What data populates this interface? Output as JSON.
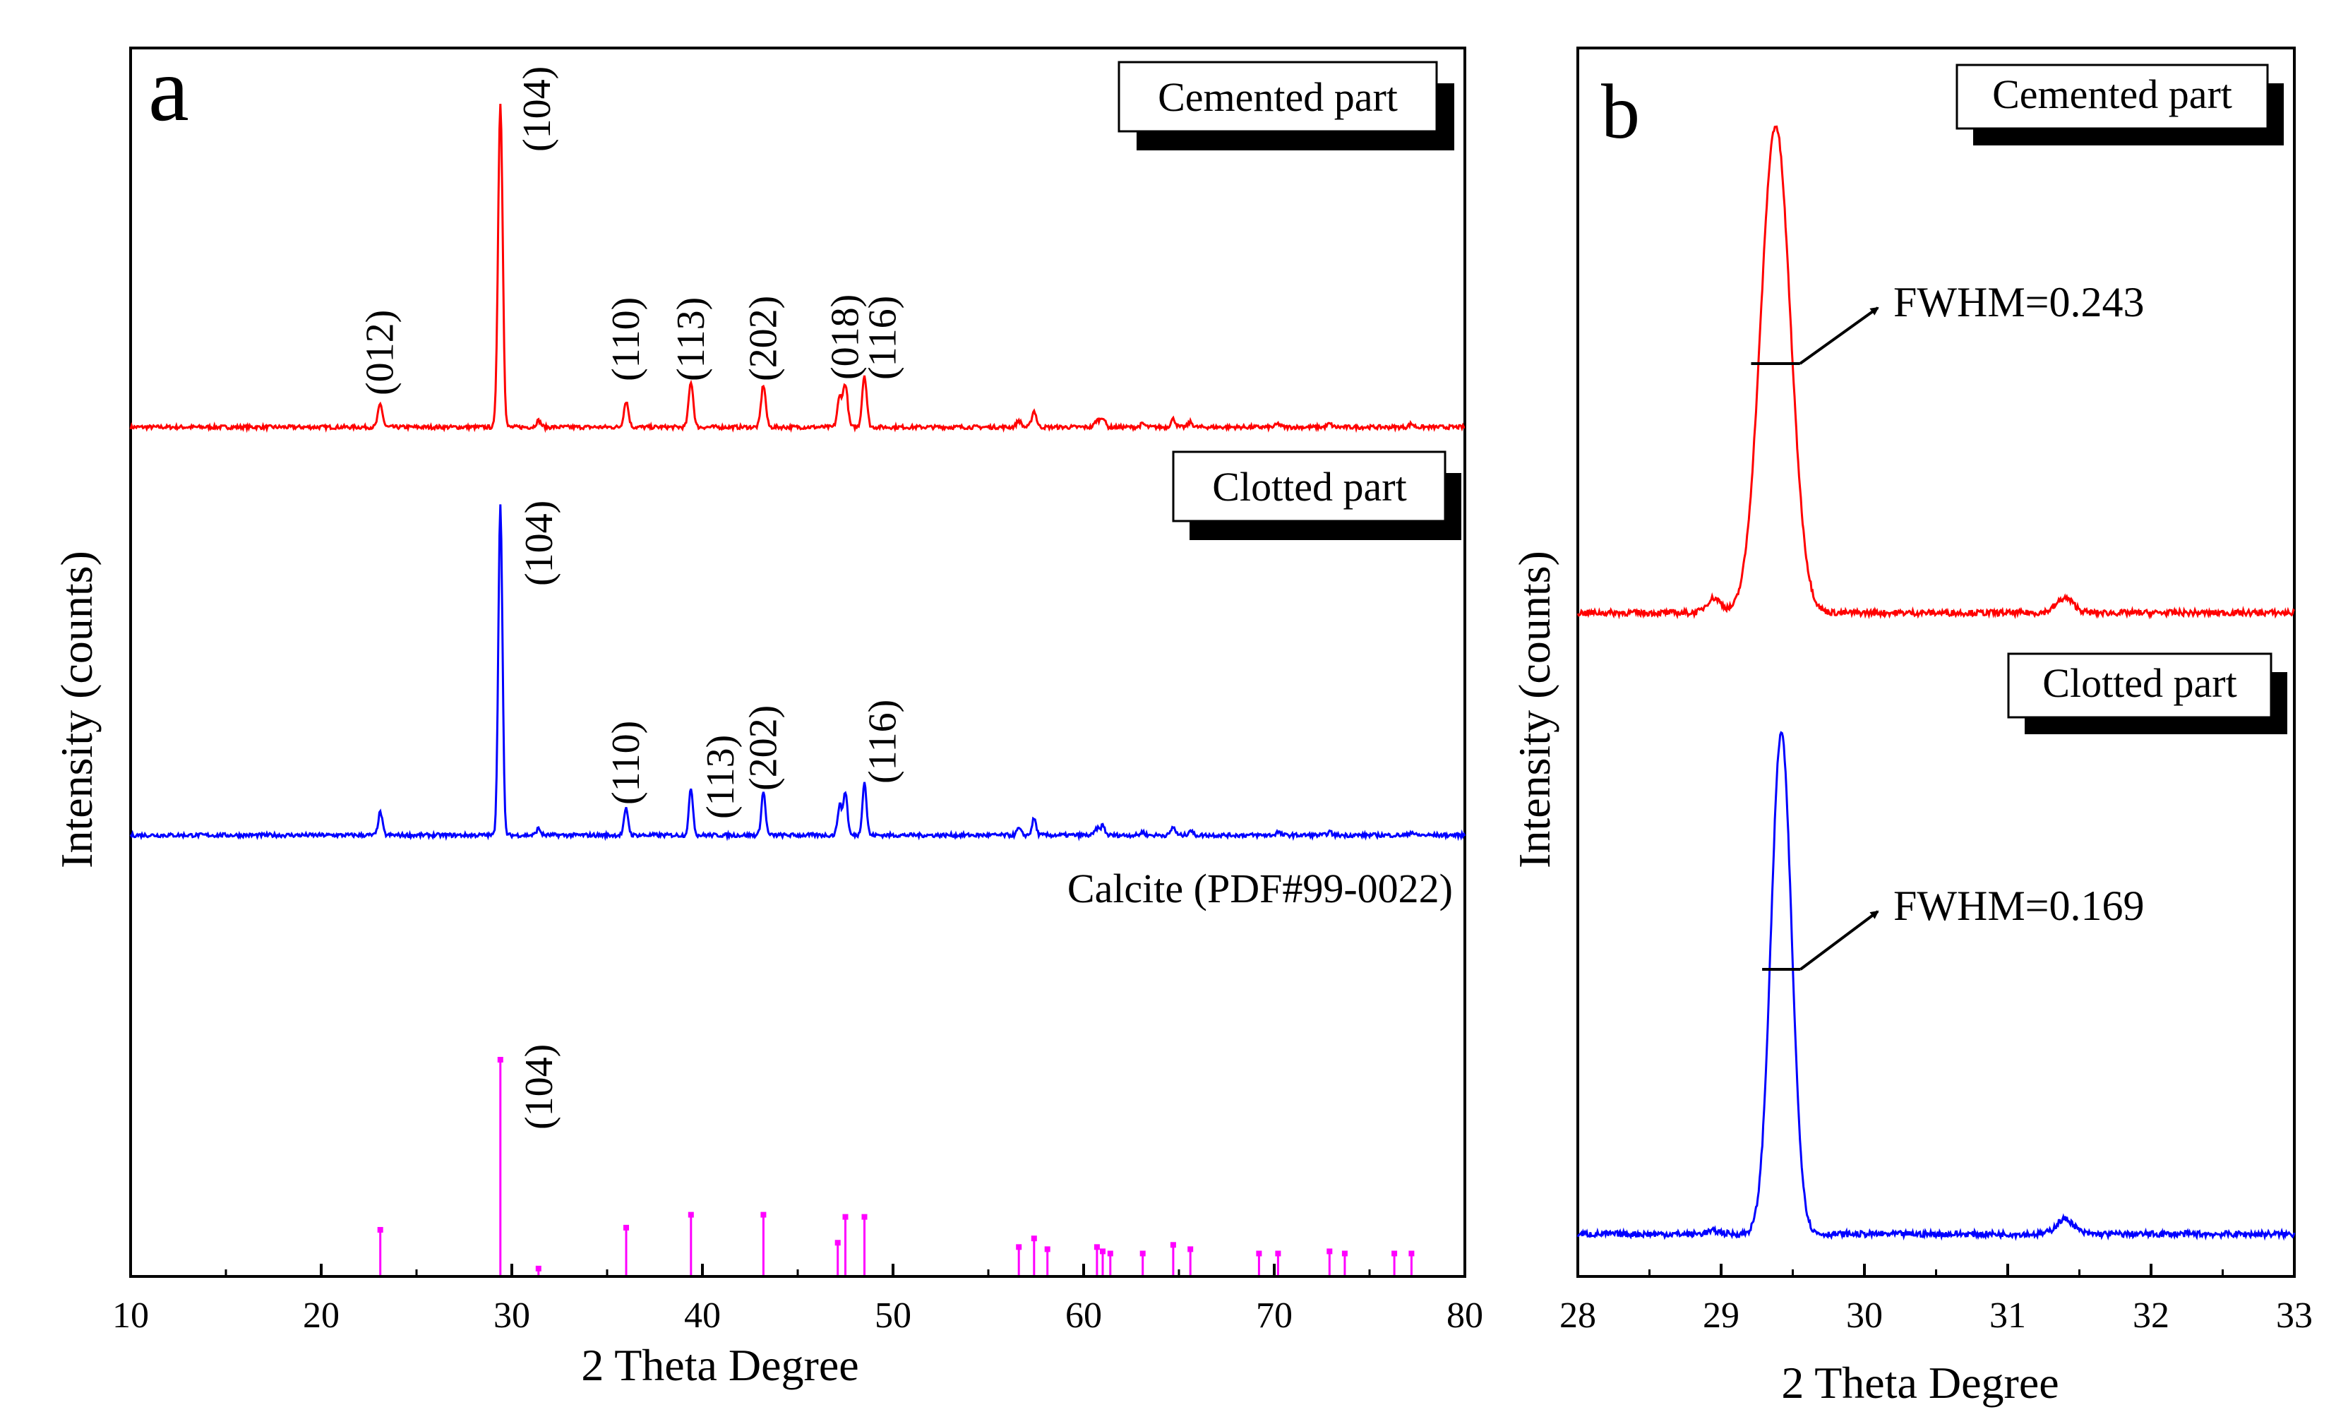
{
  "chart_data": [
    {
      "panel_letter": "a",
      "type": "line",
      "xlabel": "2 Theta Degree",
      "ylabel": "Intensity (counts)",
      "xlim": [
        10,
        80
      ],
      "x_ticks": [
        10,
        20,
        30,
        40,
        50,
        60,
        70,
        80
      ],
      "grid": false,
      "peaks": [
        {
          "x": 23.1,
          "h": 0.07
        },
        {
          "x": 29.4,
          "h": 1.0
        },
        {
          "x": 31.4,
          "h": 0.02
        },
        {
          "x": 36.0,
          "h": 0.08
        },
        {
          "x": 39.4,
          "h": 0.14
        },
        {
          "x": 43.2,
          "h": 0.13
        },
        {
          "x": 47.2,
          "h": 0.09
        },
        {
          "x": 47.5,
          "h": 0.13
        },
        {
          "x": 48.5,
          "h": 0.16
        },
        {
          "x": 56.6,
          "h": 0.02
        },
        {
          "x": 57.4,
          "h": 0.05
        },
        {
          "x": 60.7,
          "h": 0.02
        },
        {
          "x": 61.0,
          "h": 0.03
        },
        {
          "x": 63.1,
          "h": 0.01
        },
        {
          "x": 64.7,
          "h": 0.025
        },
        {
          "x": 65.6,
          "h": 0.015
        },
        {
          "x": 70.2,
          "h": 0.01
        },
        {
          "x": 72.9,
          "h": 0.01
        },
        {
          "x": 77.2,
          "h": 0.01
        }
      ],
      "series": [
        {
          "name": "Cemented part",
          "color": "#ff0000",
          "annotations": [
            {
              "label": "(012)",
              "x": 23.1
            },
            {
              "label": "(104)",
              "x": 29.4
            },
            {
              "label": "(110)",
              "x": 36.0
            },
            {
              "label": "(113)",
              "x": 39.4
            },
            {
              "label": "(202)",
              "x": 43.2
            },
            {
              "label": "(018)",
              "x": 47.5
            },
            {
              "label": "(116)",
              "x": 48.5
            }
          ]
        },
        {
          "name": "Clotted part",
          "color": "#0000ff",
          "annotations": [
            {
              "label": "(104)",
              "x": 29.4
            },
            {
              "label": "(110)",
              "x": 36.0
            },
            {
              "label": "(113)",
              "x": 39.4
            },
            {
              "label": "(202)",
              "x": 43.2
            },
            {
              "label": "(116)",
              "x": 48.5
            }
          ]
        },
        {
          "name": "Calcite (PDF#99-0022)",
          "color": "#ff00ff",
          "type": "stem",
          "x": [
            23.1,
            29.4,
            31.4,
            36.0,
            39.4,
            43.2,
            47.1,
            47.5,
            48.5,
            56.6,
            57.4,
            58.1,
            60.7,
            61.0,
            61.4,
            63.1,
            64.7,
            65.6,
            69.2,
            70.2,
            72.9,
            73.7,
            76.3,
            77.2
          ],
          "values": [
            21,
            100,
            3,
            22,
            28,
            28,
            15,
            27,
            27,
            13,
            17,
            12,
            13,
            11,
            10,
            10,
            14,
            12,
            10,
            10,
            11,
            10,
            10,
            10
          ],
          "annotations": [
            {
              "label": "(104)",
              "x": 29.4
            }
          ]
        }
      ]
    },
    {
      "panel_letter": "b",
      "type": "line",
      "xlabel": "2 Theta Degree",
      "ylabel": "Intensity (counts)",
      "xlim": [
        28,
        33
      ],
      "x_ticks": [
        28,
        29,
        30,
        31,
        32,
        33
      ],
      "grid": false,
      "series": [
        {
          "name": "Cemented part",
          "color": "#ff0000",
          "peak_x": 29.38,
          "fwhm": 0.243,
          "fwhm_label": "FWHM=0.243"
        },
        {
          "name": "Clotted part",
          "color": "#0000ff",
          "peak_x": 29.42,
          "fwhm": 0.169,
          "fwhm_label": "FWHM=0.169"
        }
      ]
    }
  ]
}
